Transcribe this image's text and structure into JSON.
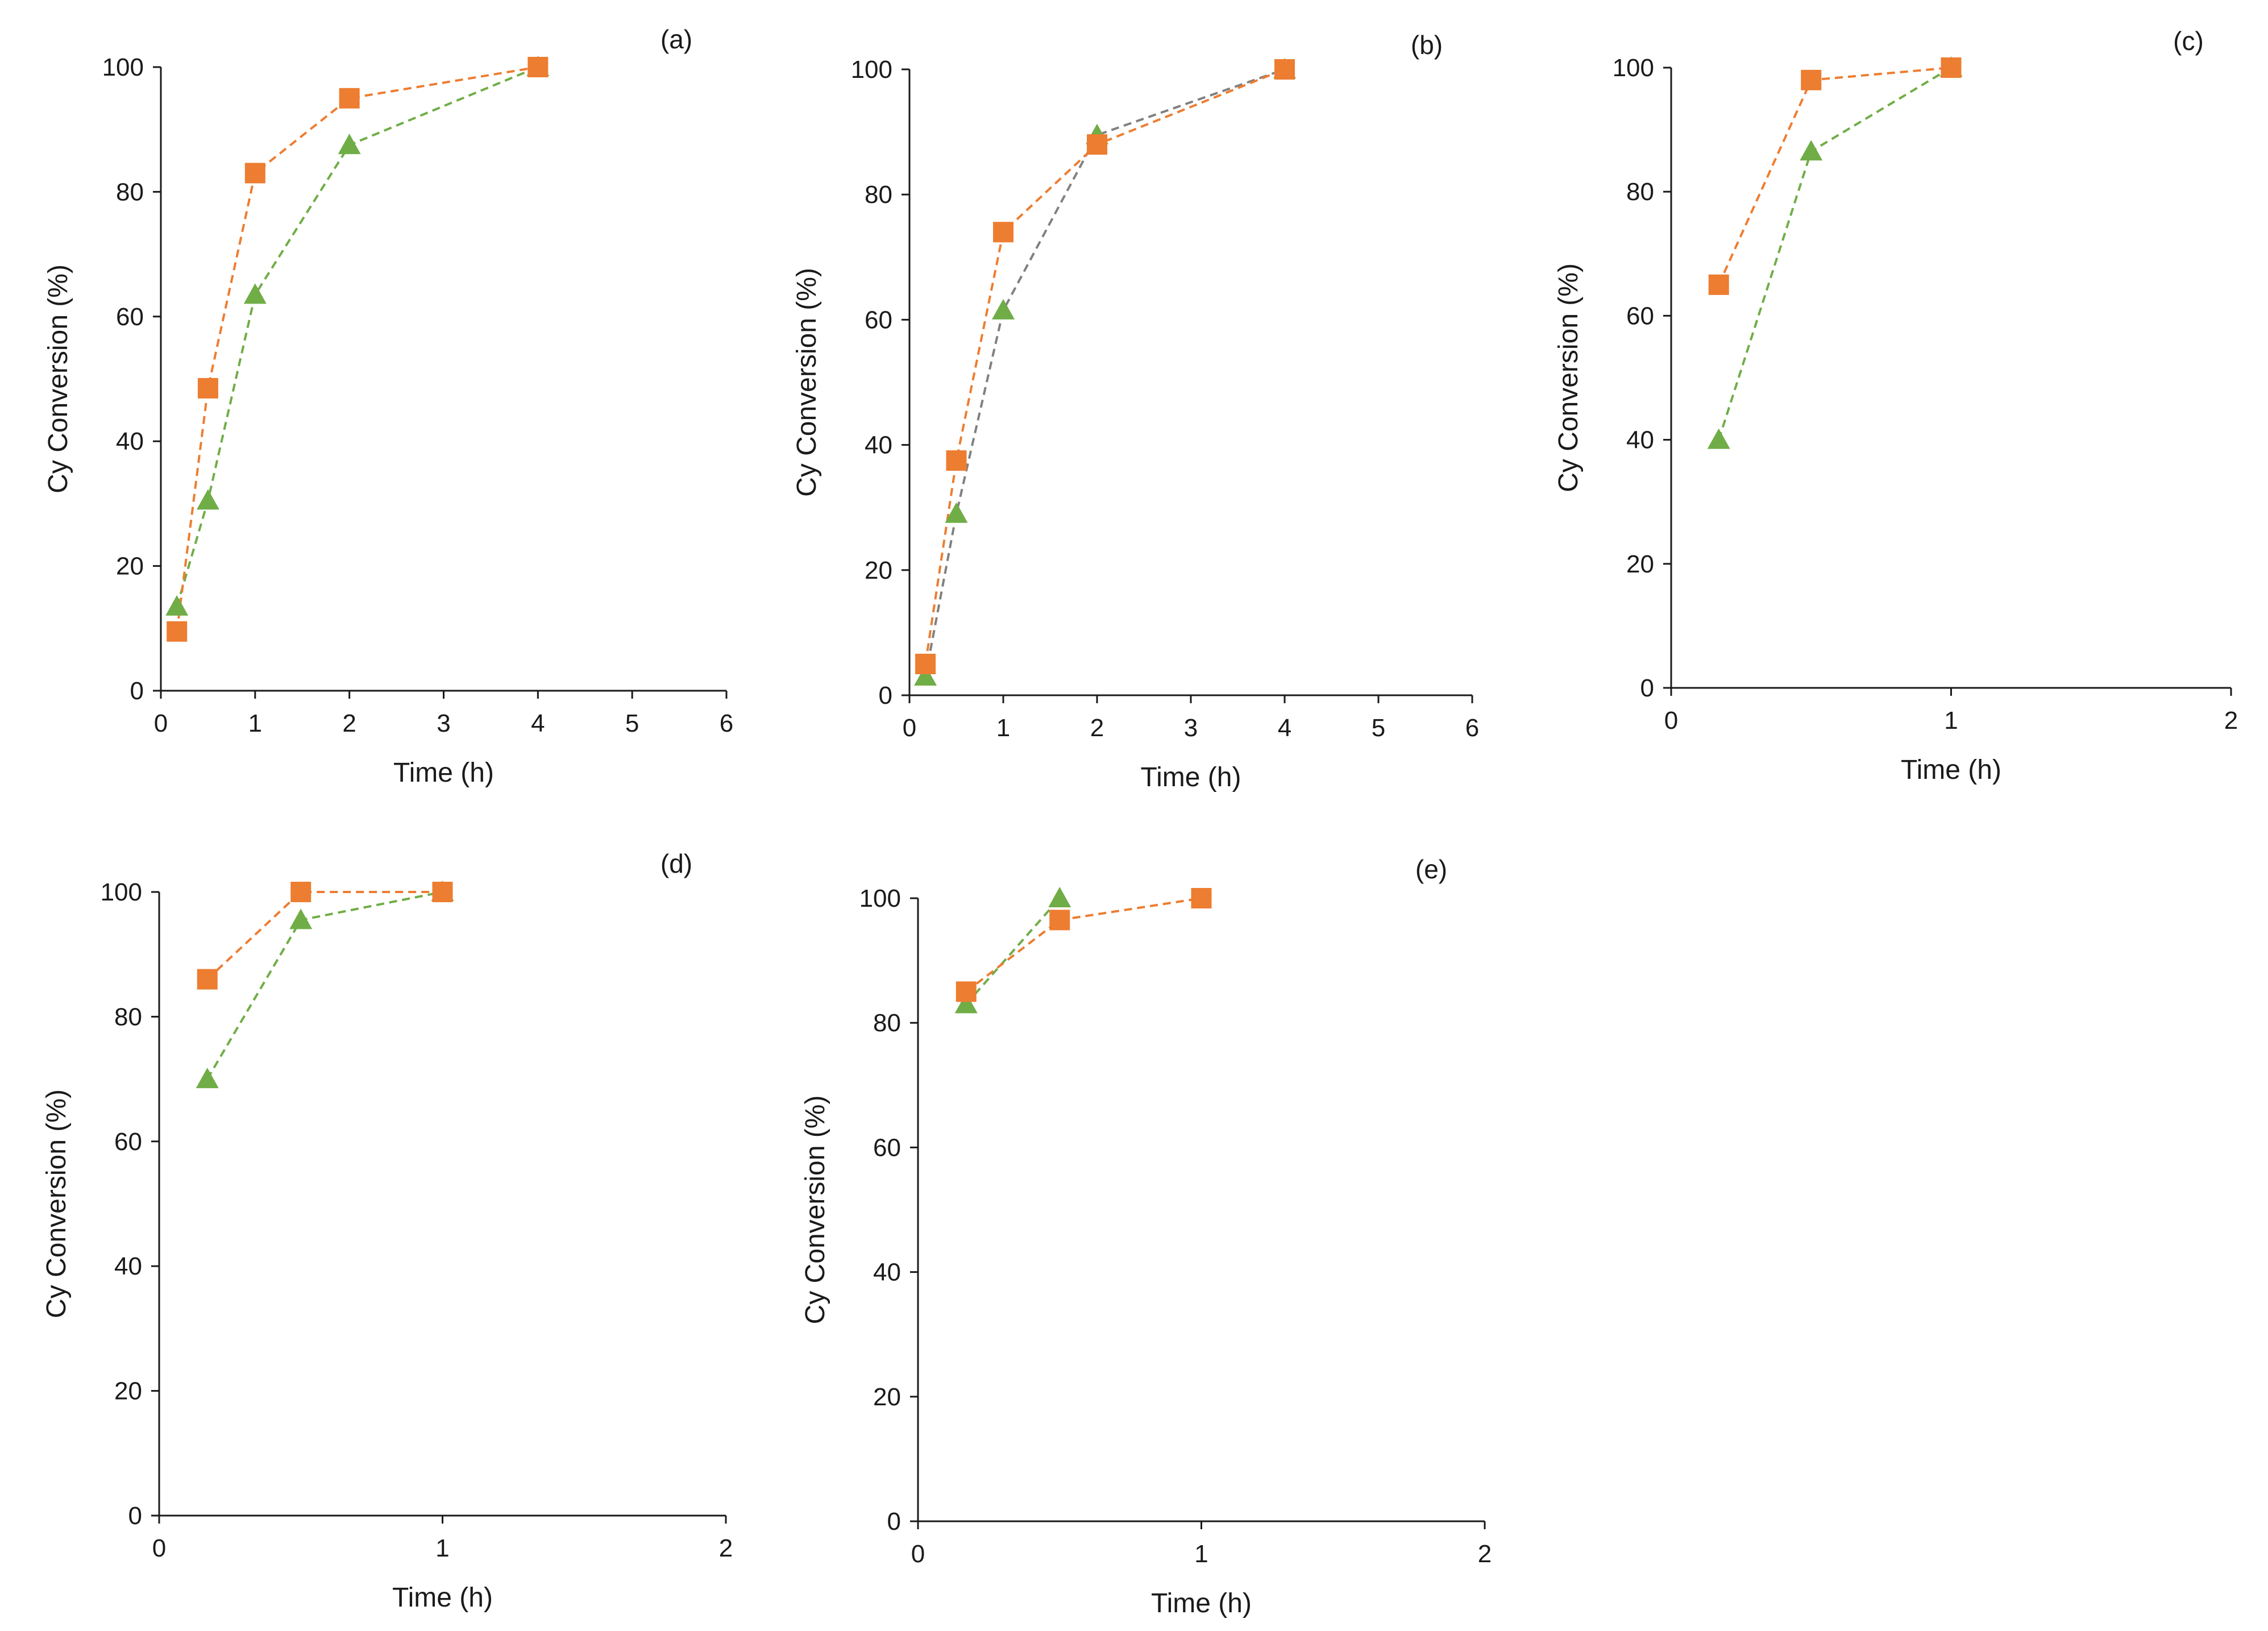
{
  "chart_data": [
    {
      "panel_label": "(a)",
      "type": "line",
      "xlabel": "Time (h)",
      "ylabel": "Cy Conversion (%)",
      "xlim": [
        0,
        6
      ],
      "ylim": [
        0,
        100
      ],
      "xticks": [
        0,
        1,
        2,
        3,
        4,
        5,
        6
      ],
      "yticks": [
        0,
        20,
        40,
        60,
        80,
        100
      ],
      "series": [
        {
          "marker": "square",
          "color": "#ED7D31",
          "line_color": "#ED7D31",
          "x": [
            0.17,
            0.5,
            1,
            2,
            4
          ],
          "y": [
            9.5,
            48.5,
            83,
            95,
            100
          ]
        },
        {
          "marker": "triangle",
          "color": "#70AD47",
          "line_color": "#70AD47",
          "x": [
            0.17,
            0.5,
            1,
            2,
            4
          ],
          "y": [
            13.5,
            30.5,
            63.5,
            87.5,
            100
          ]
        }
      ]
    },
    {
      "panel_label": "(b)",
      "type": "line",
      "xlabel": "Time (h)",
      "ylabel": "Cy Conversion (%)",
      "xlim": [
        0,
        6
      ],
      "ylim": [
        0,
        100
      ],
      "xticks": [
        0,
        1,
        2,
        3,
        4,
        5,
        6
      ],
      "yticks": [
        0,
        20,
        40,
        60,
        80,
        100
      ],
      "series": [
        {
          "marker": "square",
          "color": "#ED7D31",
          "line_color": "#ED7D31",
          "x": [
            0.17,
            0.5,
            1,
            2,
            4
          ],
          "y": [
            5,
            37.5,
            74,
            88,
            100
          ]
        },
        {
          "marker": "triangle",
          "color": "#70AD47",
          "line_color": "#808080",
          "x": [
            0.17,
            0.5,
            1,
            2,
            4
          ],
          "y": [
            3,
            29,
            61.5,
            89.5,
            100
          ]
        }
      ]
    },
    {
      "panel_label": "(c)",
      "type": "line",
      "xlabel": "Time (h)",
      "ylabel": "Cy Conversion (%)",
      "xlim": [
        0,
        2
      ],
      "ylim": [
        0,
        100
      ],
      "xticks": [
        0,
        1,
        2
      ],
      "yticks": [
        0,
        20,
        40,
        60,
        80,
        100
      ],
      "series": [
        {
          "marker": "square",
          "color": "#ED7D31",
          "line_color": "#ED7D31",
          "x": [
            0.17,
            0.5,
            1
          ],
          "y": [
            65,
            98,
            100
          ]
        },
        {
          "marker": "triangle",
          "color": "#70AD47",
          "line_color": "#70AD47",
          "x": [
            0.17,
            0.5,
            1
          ],
          "y": [
            40,
            86.5,
            100
          ]
        }
      ]
    },
    {
      "panel_label": "(d)",
      "type": "line",
      "xlabel": "Time (h)",
      "ylabel": "Cy Conversion (%)",
      "xlim": [
        0,
        2
      ],
      "ylim": [
        0,
        100
      ],
      "xticks": [
        0,
        1,
        2
      ],
      "yticks": [
        0,
        20,
        40,
        60,
        80,
        100
      ],
      "series": [
        {
          "marker": "square",
          "color": "#ED7D31",
          "line_color": "#ED7D31",
          "x": [
            0.17,
            0.5,
            1
          ],
          "y": [
            86,
            100,
            100
          ]
        },
        {
          "marker": "triangle",
          "color": "#70AD47",
          "line_color": "#70AD47",
          "x": [
            0.17,
            0.5,
            1
          ],
          "y": [
            70,
            95.5,
            100
          ]
        }
      ]
    },
    {
      "panel_label": "(e)",
      "type": "line",
      "xlabel": "Time (h)",
      "ylabel": "Cy Conversion (%)",
      "xlim": [
        0,
        2
      ],
      "ylim": [
        0,
        100
      ],
      "xticks": [
        0,
        1,
        2
      ],
      "yticks": [
        0,
        20,
        40,
        60,
        80,
        100
      ],
      "series": [
        {
          "marker": "square",
          "color": "#ED7D31",
          "line_color": "#ED7D31",
          "x": [
            0.17,
            0.5,
            1
          ],
          "y": [
            85,
            96.5,
            100
          ]
        },
        {
          "marker": "triangle",
          "color": "#70AD47",
          "line_color": "#70AD47",
          "x": [
            0.17,
            0.5
          ],
          "y": [
            83,
            100
          ]
        }
      ]
    }
  ]
}
